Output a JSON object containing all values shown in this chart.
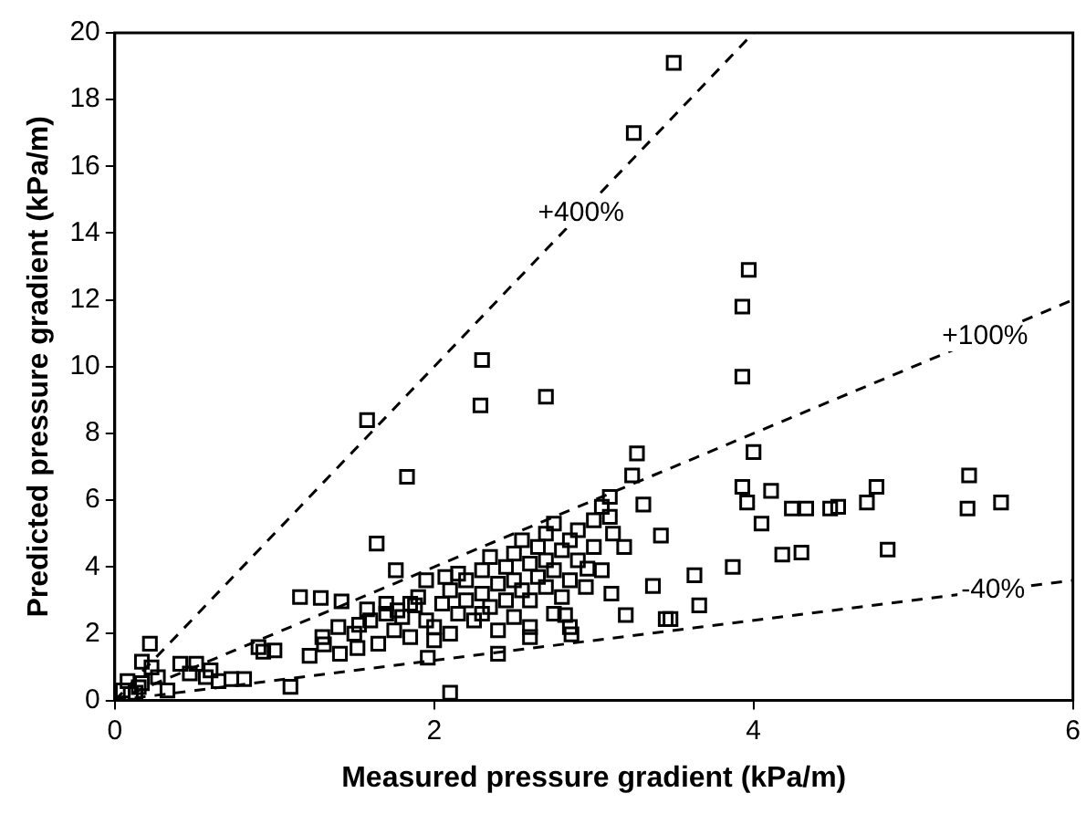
{
  "chart_data": {
    "type": "scatter",
    "xlabel": "Measured pressure gradient (kPa/m)",
    "ylabel": "Predicted pressure gradient (kPa/m)",
    "xlim": [
      0,
      6
    ],
    "xticks": [
      0,
      2,
      4,
      6
    ],
    "ylim": [
      0,
      20
    ],
    "yticks": [
      0,
      2,
      4,
      6,
      8,
      10,
      12,
      14,
      16,
      18,
      20
    ],
    "grid": false,
    "marker": "square",
    "series": [
      {
        "color": "#000000",
        "x": [
          3.5,
          3.25,
          3.97,
          3.93,
          3.93,
          2.3,
          2.29,
          2.7,
          1.58,
          1.83,
          3.27,
          3.24,
          4.0,
          3.93,
          3.96,
          4.11,
          4.05,
          4.24,
          4.33,
          4.48,
          4.53,
          4.71,
          4.77,
          4.18,
          4.3,
          4.84,
          3.87,
          3.63,
          3.66,
          5.35,
          5.34,
          5.55,
          3.48,
          3.31,
          3.1,
          3.42,
          3.19,
          3.12,
          3.45,
          3.37,
          3.2,
          3.11,
          2.86,
          2.96,
          2.82,
          1.96,
          2.1,
          1.76,
          1.64,
          0.22,
          1.16,
          1.29,
          1.42,
          0.93,
          1.1,
          1.22,
          1.31,
          1.41,
          1.52,
          1.53,
          1.58,
          1.95,
          2.07,
          1.7,
          1.77,
          1.88,
          0.08,
          0.17,
          0.27,
          0.33,
          0.41,
          0.51,
          0.57,
          0.65,
          0.73,
          0.81,
          0.23,
          0.05,
          0.13,
          0.47,
          0.17,
          0.1,
          0.15,
          0.6,
          0.9,
          1.0,
          2.0,
          2.05,
          2.1,
          2.15,
          2.2,
          2.2,
          2.25,
          2.3,
          2.3,
          2.35,
          2.35,
          2.4,
          2.4,
          2.45,
          2.45,
          2.5,
          2.5,
          2.5,
          2.55,
          2.55,
          2.6,
          2.6,
          2.6,
          2.65,
          2.65,
          2.7,
          2.7,
          2.7,
          2.75,
          2.75,
          2.8,
          2.8,
          2.85,
          2.85,
          2.9,
          2.9,
          2.95,
          3.0,
          3.0,
          3.05,
          3.05,
          2.0,
          2.1,
          2.4,
          2.3,
          2.15,
          2.75,
          2.6,
          2.85,
          3.1,
          1.3,
          1.4,
          1.5,
          1.6,
          1.7,
          1.75,
          1.8,
          1.85,
          1.9,
          1.95,
          1.85,
          1.65
        ],
        "values": [
          19.1,
          17.0,
          12.9,
          11.8,
          9.7,
          10.2,
          8.84,
          9.1,
          8.4,
          6.7,
          7.4,
          6.74,
          7.44,
          6.4,
          5.93,
          6.28,
          5.3,
          5.75,
          5.75,
          5.75,
          5.8,
          5.93,
          6.4,
          4.37,
          4.43,
          4.52,
          4.0,
          3.75,
          2.85,
          6.74,
          5.75,
          5.93,
          2.44,
          5.87,
          6.1,
          4.94,
          4.6,
          5.0,
          2.44,
          3.43,
          2.56,
          3.2,
          1.98,
          3.95,
          2.56,
          1.28,
          0.23,
          3.9,
          4.7,
          1.7,
          3.1,
          3.07,
          2.97,
          1.46,
          0.41,
          1.34,
          1.68,
          1.4,
          1.57,
          2.27,
          2.73,
          3.6,
          3.7,
          2.6,
          2.7,
          2.85,
          0.58,
          0.52,
          0.7,
          0.3,
          1.1,
          1.1,
          0.7,
          0.58,
          0.64,
          0.64,
          0.99,
          0.3,
          0.23,
          0.81,
          1.16,
          0.2,
          0.4,
          0.9,
          1.6,
          1.5,
          2.2,
          2.9,
          3.3,
          2.6,
          3.0,
          3.6,
          2.4,
          3.2,
          3.9,
          2.8,
          4.3,
          3.5,
          2.1,
          4.0,
          3.0,
          4.4,
          3.6,
          2.5,
          3.3,
          4.8,
          4.1,
          3.0,
          2.2,
          3.7,
          4.6,
          5.0,
          4.2,
          3.4,
          5.3,
          3.9,
          4.5,
          3.1,
          4.8,
          3.6,
          5.1,
          4.2,
          3.4,
          4.6,
          5.4,
          5.8,
          3.9,
          1.8,
          2.0,
          1.4,
          2.6,
          3.8,
          2.6,
          1.9,
          2.2,
          5.5,
          1.9,
          2.2,
          2.0,
          2.4,
          2.9,
          2.1,
          2.5,
          2.9,
          3.1,
          2.4,
          1.9,
          1.7
        ]
      },
      {
        "type": "line",
        "color": "#000000",
        "line_style": "dashed",
        "marker": "none",
        "x": [
          0,
          4
        ],
        "values": [
          0,
          20
        ]
      },
      {
        "type": "line",
        "color": "#000000",
        "line_style": "dashed",
        "marker": "none",
        "x": [
          0,
          6
        ],
        "values": [
          0,
          12
        ]
      },
      {
        "type": "line",
        "color": "#000000",
        "line_style": "dashed",
        "marker": "none",
        "x": [
          0,
          6
        ],
        "values": [
          0,
          3.6
        ]
      }
    ],
    "annotations": [
      {
        "text": "+400%",
        "x": 2.92,
        "y": 14.6
      },
      {
        "text": "+100%",
        "x": 5.45,
        "y": 10.9
      },
      {
        "text": "-40%",
        "x": 5.5,
        "y": 3.3
      }
    ]
  }
}
